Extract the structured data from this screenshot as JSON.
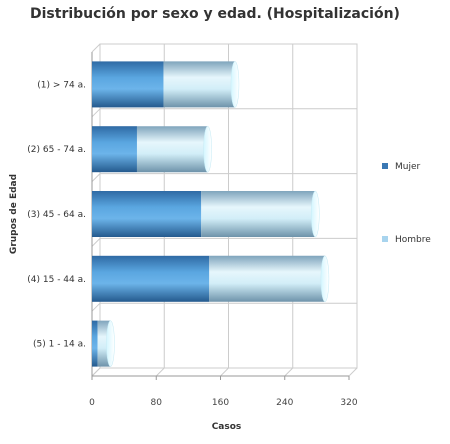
{
  "chart_data": {
    "type": "bar",
    "orientation": "horizontal",
    "stacked": true,
    "title": "Distribución por sexo y edad. (Hospitalización)",
    "xlabel": "Casos",
    "ylabel": "Grupos de Edad",
    "categories": [
      "(1) > 74 a.",
      "(2) 65 - 74 a.",
      "(3) 45 - 64 a.",
      "(4) 15 - 44 a.",
      "(5) 1 - 14 a."
    ],
    "series": [
      {
        "name": "Mujer",
        "values": [
          89,
          56,
          136,
          146,
          7
        ],
        "color": "#3a78b4"
      },
      {
        "name": "Hombre",
        "values": [
          89,
          88,
          142,
          144,
          16
        ],
        "color": "#a8d4ee"
      }
    ],
    "xticks": [
      0,
      80,
      160,
      240,
      320
    ],
    "xlim": [
      0,
      320
    ],
    "grid": true,
    "legend_position": "right"
  }
}
